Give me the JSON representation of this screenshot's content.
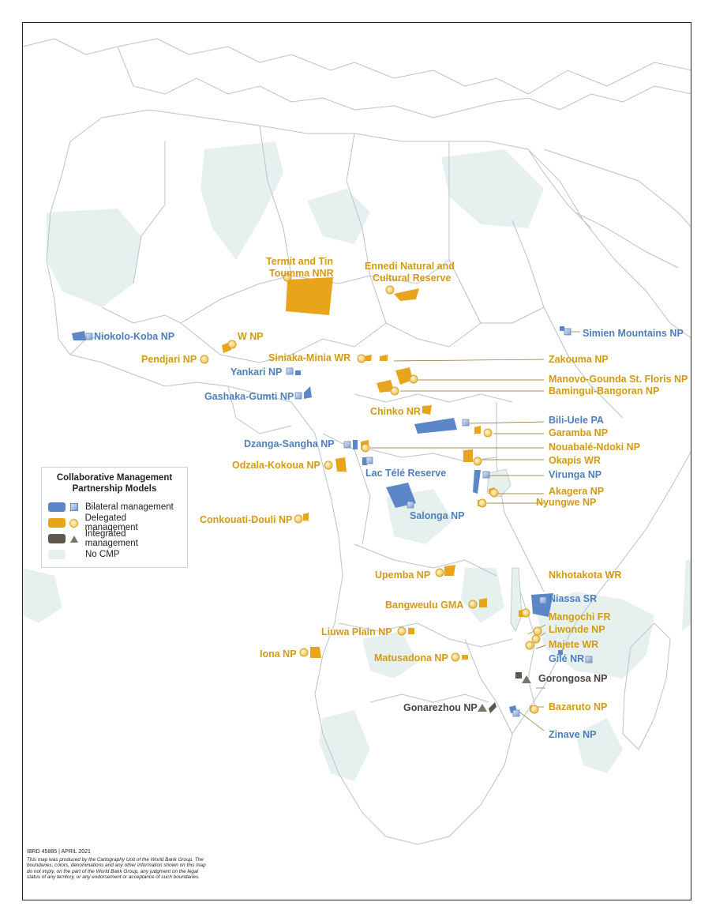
{
  "legend": {
    "title_line1": "Collaborative Management",
    "title_line2": "Partnership Models",
    "items": [
      {
        "label": "Bilateral management",
        "color": "#5b87c9",
        "symbol": "square-icon"
      },
      {
        "label": "Delegated management",
        "color": "#e8a51b",
        "symbol": "circle-icon"
      },
      {
        "label": "Integrated management",
        "color": "#5f574b",
        "symbol": "triangle-icon"
      },
      {
        "label": "No CMP",
        "color": "#e6f1ef",
        "symbol": ""
      }
    ]
  },
  "credits": {
    "map_id": "IBRD 45885 | APRIL 2021",
    "disclaimer": "This map was produced by the Cartography Unit of the World Bank Group. The boundaries, colors, denominations and any other information shown on this map do not imply, on the part of the World Bank Group, any judgment on the legal status of any territory, or any endorsement or acceptance of such boundaries."
  },
  "labels": {
    "termit_1": "Termit and Tin",
    "termit_2": "Toumma NNR",
    "ennedi_1": "Ennedi Natural and",
    "ennedi_2": "Cultural Reserve",
    "simien": "Simien Mountains NP",
    "niokolo": "Niokolo-Koba NP",
    "wnp": "W NP",
    "pendjari": "Pendjari NP",
    "siniaka": "Siniaka-Minia WR",
    "yankari": "Yankari NP",
    "gashaka": "Gashaka-Gumti NP",
    "zakouma": "Zakouma NP",
    "manovo": "Manovo-Gounda St. Floris NP",
    "bamingui": "Bamingui-Bangoran NP",
    "chinko": "Chinko NR",
    "biliuele": "Bili-Uele PA",
    "garamba": "Garamba NP",
    "dzanga": "Dzanga-Sangha NP",
    "nouabale": "Nouabalé-Ndoki NP",
    "odzala": "Odzala-Kokoua NP",
    "okapis": "Okapis WR",
    "lactele": "Lac Télé Reserve",
    "virunga": "Virunga NP",
    "akagera": "Akagera NP",
    "nyungwe": "Nyungwe NP",
    "salonga": "Salonga NP",
    "conkouati": "Conkouati-Douli NP",
    "upemba": "Upemba NP",
    "nkhotakota": "Nkhotakota WR",
    "niassa": "Niassa SR",
    "bangweulu": "Bangweulu GMA",
    "mangochi": "Mangochi FR",
    "liwonde": "Liwonde NP",
    "liuwa": "Liuwa Plain NP",
    "majete": "Majete WR",
    "iona": "Iona NP",
    "matusadona": "Matusadona NP",
    "gile": "Gilé NR",
    "gorongosa": "Gorongosa NP",
    "gonarezhou": "Gonarezhou NP",
    "bazaruto": "Bazaruto NP",
    "zinave": "Zinave NP"
  },
  "colors": {
    "bilateral": "#5b87c9",
    "delegated": "#e8a51b",
    "integrated": "#5f574b",
    "no_cmp": "#e6f1ef",
    "land": "#ffffff",
    "border": "#b9c3c9"
  }
}
